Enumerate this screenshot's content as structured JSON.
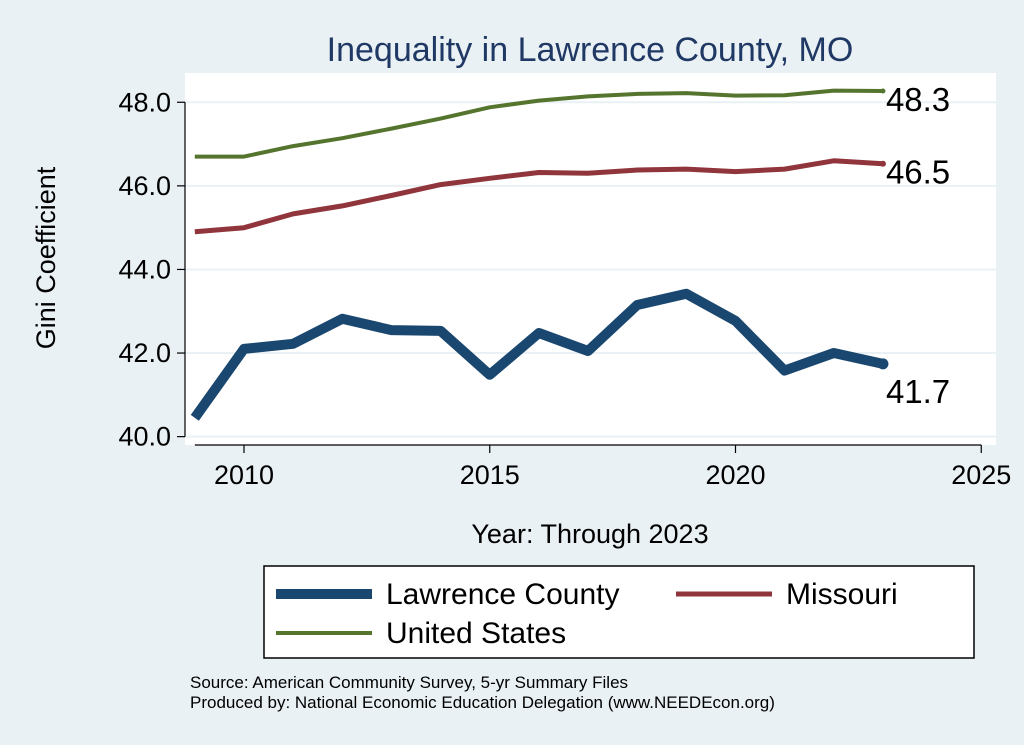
{
  "chart_data": {
    "type": "line",
    "title": "Inequality in Lawrence County, MO",
    "xlabel": "Year: Through 2023",
    "ylabel": "Gini Coefficient",
    "xlim": [
      2008.8,
      2025.3
    ],
    "ylim": [
      39.8,
      48.7
    ],
    "x_ticks": [
      2010,
      2015,
      2020,
      2025
    ],
    "x_tick_labels": [
      "2010",
      "2015",
      "2020",
      "2025"
    ],
    "y_ticks": [
      40,
      42,
      44,
      46,
      48
    ],
    "y_tick_labels": [
      "40.0",
      "42.0",
      "44.0",
      "46.0",
      "48.0"
    ],
    "x": [
      2009,
      2010,
      2011,
      2012,
      2013,
      2014,
      2015,
      2016,
      2017,
      2018,
      2019,
      2020,
      2021,
      2022,
      2023
    ],
    "series": [
      {
        "name": "Lawrence County",
        "color": "#1a476f",
        "values": [
          40.45,
          42.1,
          42.22,
          42.82,
          42.55,
          42.53,
          41.48,
          42.48,
          42.05,
          43.15,
          43.42,
          42.77,
          41.58,
          42.0,
          41.74
        ],
        "end_label": "41.7"
      },
      {
        "name": "Missouri",
        "color": "#90353b",
        "values": [
          44.9,
          45.0,
          45.33,
          45.52,
          45.77,
          46.03,
          46.18,
          46.32,
          46.3,
          46.38,
          46.4,
          46.34,
          46.4,
          46.6,
          46.53
        ],
        "end_label": "46.5"
      },
      {
        "name": "United States",
        "color": "#55752f",
        "values": [
          46.7,
          46.7,
          46.95,
          47.14,
          47.37,
          47.61,
          47.88,
          48.04,
          48.14,
          48.2,
          48.22,
          48.16,
          48.17,
          48.28,
          48.27
        ],
        "end_label": "48.3"
      }
    ],
    "legend": {
      "placement": "bottom",
      "entries": [
        "Lawrence County",
        "Missouri",
        "United States"
      ]
    },
    "notes": [
      "Source: American Community Survey, 5-yr Summary Files",
      "Produced by: National Economic Education Delegation (www.NEEDEcon.org)"
    ]
  }
}
